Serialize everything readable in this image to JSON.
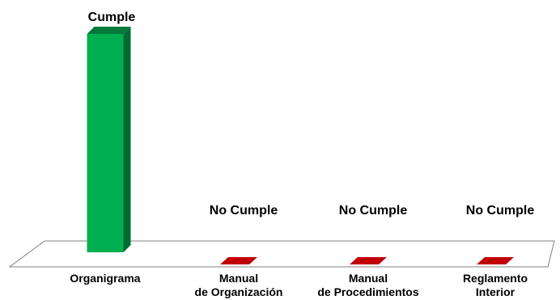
{
  "chart_data": {
    "type": "bar",
    "categories": [
      [
        "Organigrama"
      ],
      [
        "Manual",
        "de Organización"
      ],
      [
        "Manual",
        "de Procedimientos"
      ],
      [
        "Reglamento",
        "Interior"
      ]
    ],
    "values": [
      1,
      0,
      0,
      0
    ],
    "data_labels": [
      "Cumple",
      "No Cumple",
      "No Cumple",
      "No Cumple"
    ],
    "title": "",
    "xlabel": "",
    "ylabel": "",
    "ylim": [
      0,
      1
    ],
    "grid": false,
    "legend": "none",
    "colors": {
      "cumple_front": "#00b050",
      "cumple_top": "#007a3a",
      "cumple_side": "#006b32",
      "no_cumple": "#c00000",
      "floor_stroke": "#808080"
    }
  }
}
